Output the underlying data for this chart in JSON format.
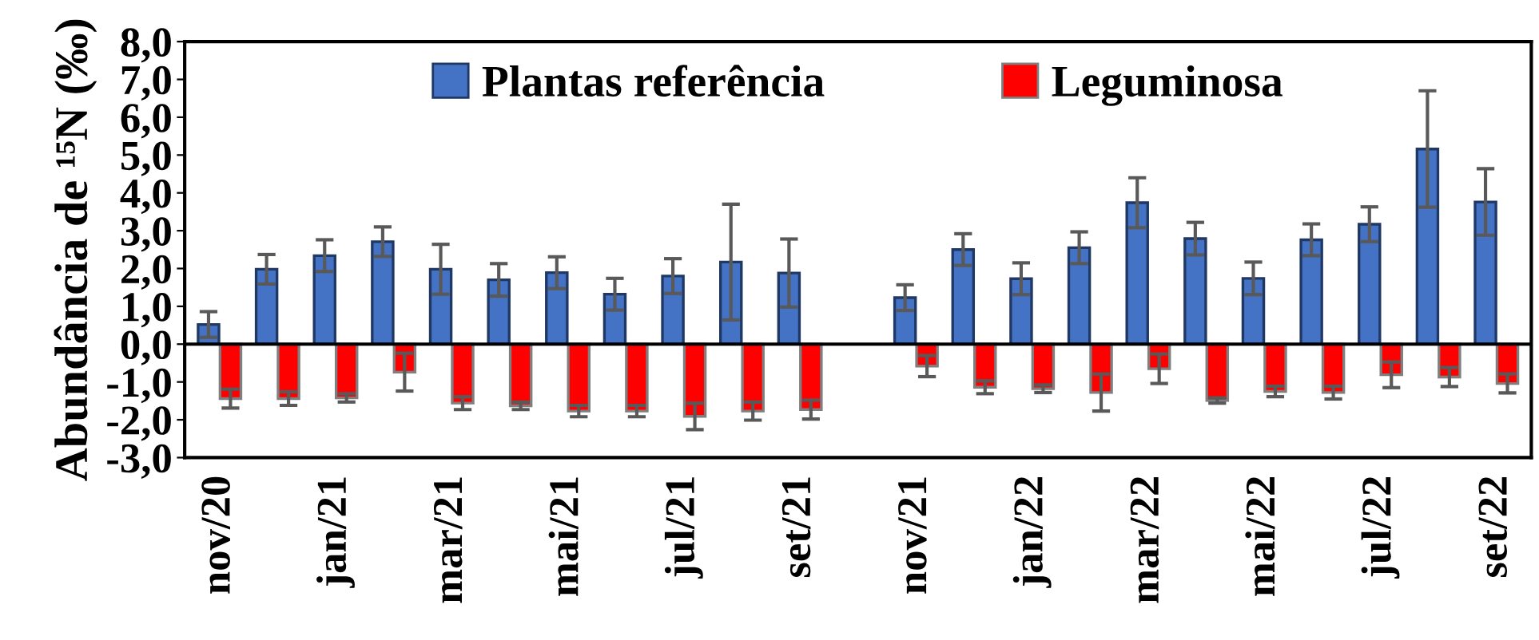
{
  "chart_data": {
    "type": "bar",
    "ylabel": "Abundância de ¹⁵N (‰)",
    "categories": [
      "nov/20",
      null,
      "jan/21",
      null,
      "mar/21",
      null,
      "mai/21",
      null,
      "jul/21",
      null,
      "set/21",
      null,
      "nov/21",
      null,
      "jan/22",
      null,
      "mar/22",
      null,
      "mai/22",
      null,
      "jul/22",
      null,
      "set/22"
    ],
    "series": [
      {
        "name": "Plantas referência",
        "color": "#4472c4",
        "values": [
          0.52,
          1.98,
          2.34,
          2.71,
          1.98,
          1.7,
          1.89,
          1.32,
          1.8,
          2.17,
          1.88,
          null,
          1.23,
          2.5,
          1.73,
          2.55,
          3.74,
          2.79,
          1.74,
          2.76,
          3.17,
          5.16,
          3.76
        ],
        "errors": [
          0.34,
          0.39,
          0.42,
          0.39,
          0.66,
          0.43,
          0.42,
          0.42,
          0.46,
          1.53,
          0.9,
          null,
          0.34,
          0.42,
          0.42,
          0.42,
          0.66,
          0.43,
          0.43,
          0.42,
          0.46,
          1.54,
          0.88
        ]
      },
      {
        "name": "Leguminosa",
        "color": "#ff0000",
        "values": [
          -1.44,
          -1.44,
          -1.42,
          -0.74,
          -1.56,
          -1.63,
          -1.77,
          -1.77,
          -1.91,
          -1.77,
          -1.73,
          null,
          -0.58,
          -1.14,
          -1.18,
          -1.28,
          -0.65,
          -1.49,
          -1.25,
          -1.28,
          -0.81,
          -0.87,
          -1.04
        ],
        "errors": [
          0.25,
          0.18,
          0.11,
          0.5,
          0.17,
          0.1,
          0.15,
          0.15,
          0.35,
          0.24,
          0.25,
          null,
          0.28,
          0.17,
          0.1,
          0.49,
          0.39,
          0.07,
          0.14,
          0.17,
          0.34,
          0.25,
          0.25
        ]
      }
    ],
    "ylim": [
      -3,
      8
    ],
    "yticks": [
      {
        "value": -3,
        "label": "-3,0"
      },
      {
        "value": -2,
        "label": "-2,0"
      },
      {
        "value": -1,
        "label": "-1,0"
      },
      {
        "value": 0,
        "label": "0,0"
      },
      {
        "value": 1,
        "label": "1,0"
      },
      {
        "value": 2,
        "label": "2,0"
      },
      {
        "value": 3,
        "label": "3,0"
      },
      {
        "value": 4,
        "label": "4,0"
      },
      {
        "value": 5,
        "label": "5,0"
      },
      {
        "value": 6,
        "label": "6,0"
      },
      {
        "value": 7,
        "label": "7,0"
      },
      {
        "value": 8,
        "label": "8,0"
      }
    ],
    "grid": false,
    "ref_lines": [
      {
        "axis": "y",
        "value": 0,
        "color": "#000000"
      }
    ],
    "legend": "top"
  }
}
